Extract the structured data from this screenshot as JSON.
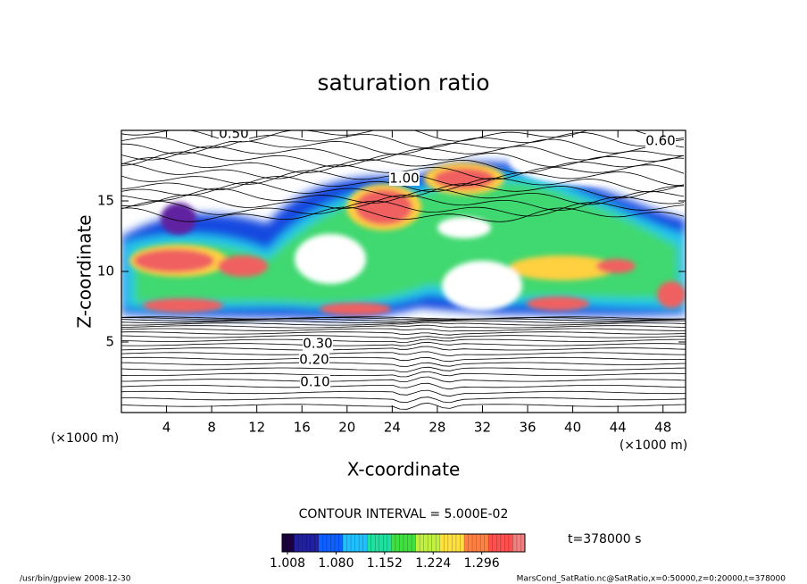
{
  "chart_data": {
    "type": "contour",
    "title": "saturation ratio",
    "x_label": "X-coordinate",
    "y_label": "Z-coordinate",
    "x_unit_left": "(×1000 m)",
    "x_unit_right": "(×1000 m)",
    "xlim": [
      0,
      50
    ],
    "ylim": [
      0,
      20
    ],
    "xticks": [
      4,
      8,
      12,
      16,
      20,
      24,
      28,
      32,
      36,
      40,
      44,
      48
    ],
    "yticks": [
      5,
      10,
      15
    ],
    "contour_labels": [
      "0.10",
      "0.20",
      "0.30",
      "0.50",
      "0.60",
      "1.00"
    ],
    "contour_interval": "CONTOUR INTERVAL = 5.000E-02",
    "time_label": "t=378000 s",
    "colorbar": {
      "clim": [
        1.0,
        1.36
      ],
      "ticks": [
        1.008,
        {
          "value": 1.08,
          "label": "1.080"
        },
        1.152,
        1.224,
        1.296
      ],
      "colormap": [
        "#1a0040",
        "#2020a0",
        "#1060ff",
        "#20c0ff",
        "#20e0a0",
        "#40e040",
        "#c0f040",
        "#ffe040",
        "#ff8040",
        "#ff5050",
        "#f08080"
      ]
    },
    "footer_left": "/usr/bin/gpview   2008-12-30",
    "footer_right": "MarsCond_SatRatio.nc@SatRatio,x=0:50000,z=0:20000,t=378000"
  }
}
